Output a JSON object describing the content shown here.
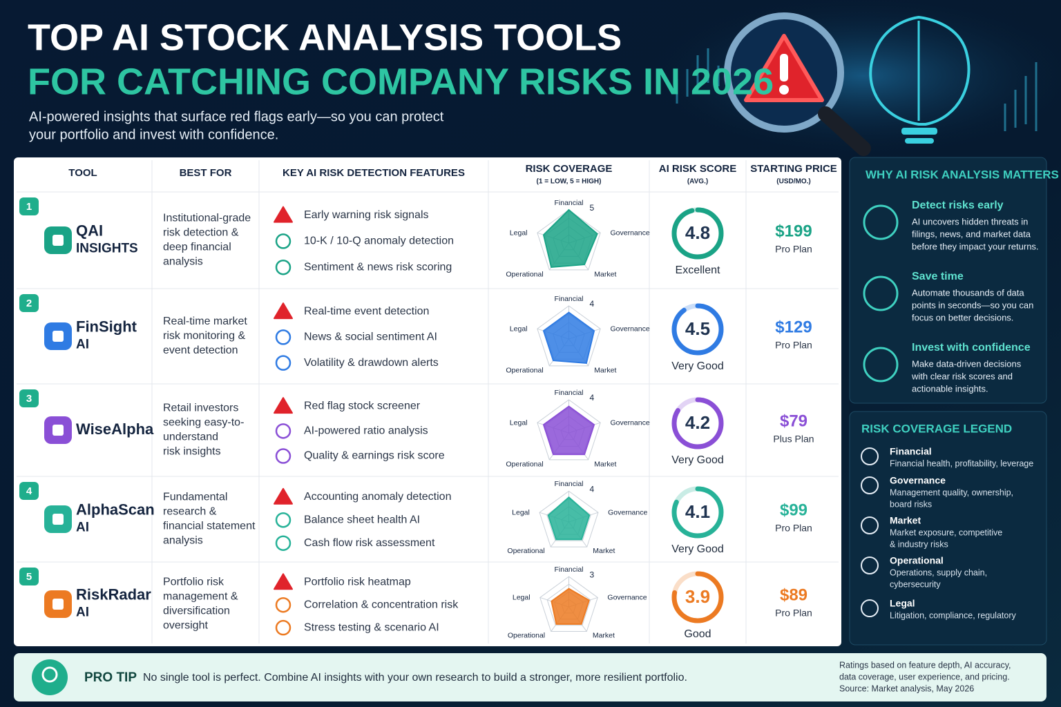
{
  "header": {
    "title_line1": "TOP AI STOCK ANALYSIS TOOLS",
    "title_line2": "FOR CATCHING COMPANY RISKS IN 2026",
    "subtitle_lines": [
      "AI-powered insights that surface red flags early—so you can protect",
      "your portfolio and invest with confidence."
    ]
  },
  "table": {
    "columns": [
      {
        "label": "TOOL"
      },
      {
        "label": "BEST FOR"
      },
      {
        "label": "KEY AI RISK DETECTION FEATURES"
      },
      {
        "label": "RISK COVERAGE",
        "note": "(1 = LOW, 5 = HIGH)"
      },
      {
        "label": "AI RISK SCORE",
        "note": "(AVG.)"
      },
      {
        "label": "STARTING PRICE",
        "note": "(USD/MO.)"
      }
    ],
    "risk_axes": [
      "Financial",
      "Governance",
      "Market",
      "Operational",
      "Legal"
    ],
    "rlim": [
      0,
      5
    ],
    "score_lim": [
      0,
      5
    ],
    "rows": [
      {
        "rank": 1,
        "name_lines": [
          "QAI",
          "INSIGHTS"
        ],
        "color": "#1aa386",
        "best_for": [
          "Institutional-grade",
          "risk detection &",
          "deep financial",
          "analysis"
        ],
        "features": [
          "Early warning risk signals",
          "10-K / 10-Q anomaly detection",
          "Sentiment & news risk scoring"
        ],
        "coverage": [
          5,
          4.5,
          4,
          4.5,
          4
        ],
        "score": 4.8,
        "rating": "Excellent",
        "price": "$199",
        "plan": "Pro Plan"
      },
      {
        "rank": 2,
        "name_lines": [
          "FinSight",
          "AI"
        ],
        "color": "#2f7be3",
        "best_for": [
          "Real-time market",
          "risk monitoring &",
          "event detection"
        ],
        "features": [
          "Real-time event detection",
          "News & social sentiment AI",
          "Volatility & drawdown alerts"
        ],
        "coverage": [
          4,
          4,
          4.5,
          4,
          4
        ],
        "score": 4.5,
        "rating": "Very Good",
        "price": "$129",
        "plan": "Pro Plan"
      },
      {
        "rank": 3,
        "name_lines": [
          "WiseAlpha"
        ],
        "color": "#8a4fd6",
        "best_for": [
          "Retail investors",
          "seeking easy-to-",
          "understand",
          "risk insights"
        ],
        "features": [
          "Red flag stock screener",
          "AI-powered ratio analysis",
          "Quality & earnings risk score"
        ],
        "coverage": [
          4,
          4,
          4,
          4,
          4
        ],
        "score": 4.2,
        "rating": "Very Good",
        "price": "$79",
        "plan": "Plus Plan"
      },
      {
        "rank": 4,
        "name_lines": [
          "AlphaScan",
          "AI"
        ],
        "color": "#27b298",
        "best_for": [
          "Fundamental",
          "research &",
          "financial statement",
          "analysis"
        ],
        "features": [
          "Accounting anomaly detection",
          "Balance sheet health AI",
          "Cash flow risk assessment"
        ],
        "coverage": [
          4,
          3.5,
          3.5,
          3.5,
          3.5
        ],
        "score": 4.1,
        "rating": "Very Good",
        "price": "$99",
        "plan": "Pro Plan"
      },
      {
        "rank": 5,
        "name_lines": [
          "RiskRadar",
          "AI"
        ],
        "color": "#ec7a22",
        "best_for": [
          "Portfolio risk",
          "management &",
          "diversification",
          "oversight"
        ],
        "features": [
          "Portfolio risk heatmap",
          "Correlation & concentration risk",
          "Stress testing & scenario AI"
        ],
        "coverage": [
          3,
          3.5,
          3.5,
          3.5,
          3
        ],
        "score": 3.9,
        "rating": "Good",
        "price": "$89",
        "plan": "Pro Plan"
      }
    ]
  },
  "why": {
    "title": "WHY AI RISK ANALYSIS MATTERS",
    "items": [
      {
        "title": "Detect risks early",
        "lines": [
          "AI uncovers hidden threats in",
          "filings, news, and market data",
          "before they impact your returns."
        ]
      },
      {
        "title": "Save time",
        "lines": [
          "Automate thousands of data",
          "points in seconds—so you can",
          "focus on better decisions."
        ]
      },
      {
        "title": "Invest with confidence",
        "lines": [
          "Make data-driven decisions",
          "with clear risk scores and",
          "actionable insights."
        ]
      }
    ]
  },
  "legend": {
    "title": "RISK COVERAGE LEGEND",
    "items": [
      {
        "name": "Financial",
        "lines": [
          "Financial health, profitability, leverage"
        ]
      },
      {
        "name": "Governance",
        "lines": [
          "Management quality, ownership,",
          "board risks"
        ]
      },
      {
        "name": "Market",
        "lines": [
          "Market exposure, competitive",
          "& industry risks"
        ]
      },
      {
        "name": "Operational",
        "lines": [
          "Operations, supply chain,",
          "cybersecurity"
        ]
      },
      {
        "name": "Legal",
        "lines": [
          "Litigation, compliance, regulatory"
        ]
      }
    ]
  },
  "tip": {
    "label": "PRO TIP",
    "text": "No single tool is perfect. Combine AI insights with your own research to build a stronger, more resilient portfolio.",
    "note_lines": [
      "Ratings based on feature depth, AI accuracy,",
      "data coverage, user experience, and pricing.",
      "Source: Market analysis, May 2026"
    ]
  }
}
